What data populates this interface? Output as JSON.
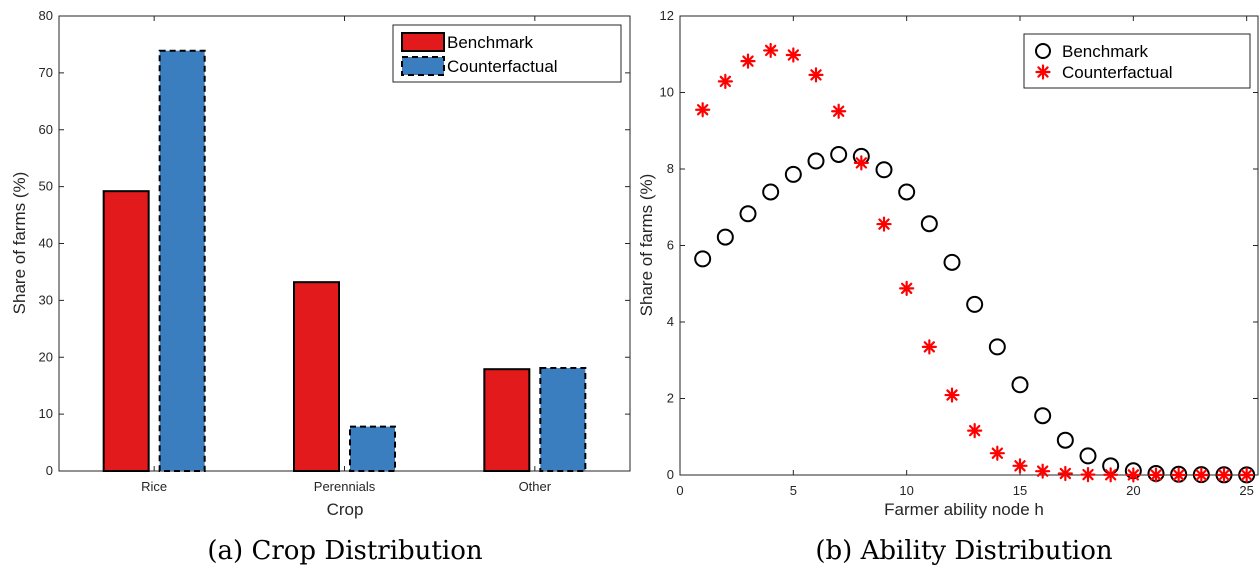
{
  "captions": {
    "left": "(a) Crop Distribution",
    "right": "(b) Ability Distribution"
  },
  "colors": {
    "benchmark": "#e31a1c",
    "counterfactual": "#3a7ec0",
    "marker_benchmark": "#000000",
    "marker_counterfactual": "#ff0000"
  },
  "chart_data": [
    {
      "type": "bar",
      "categories": [
        "Rice",
        "Perennials",
        "Other"
      ],
      "series": [
        {
          "name": "Benchmark",
          "values": [
            49.2,
            33.2,
            17.9
          ]
        },
        {
          "name": "Counterfactual",
          "values": [
            73.9,
            7.8,
            18.1
          ]
        }
      ],
      "xlabel": "Crop",
      "ylabel": "Share of farms (%)",
      "ylim": [
        0,
        80
      ],
      "yticks": [
        0,
        10,
        20,
        30,
        40,
        50,
        60,
        70,
        80
      ],
      "legend": "top-right",
      "grid": false
    },
    {
      "type": "scatter",
      "x": [
        1,
        2,
        3,
        4,
        5,
        6,
        7,
        8,
        9,
        10,
        11,
        12,
        13,
        14,
        15,
        16,
        17,
        18,
        19,
        20,
        21,
        22,
        23,
        24,
        25
      ],
      "series": [
        {
          "name": "Benchmark",
          "marker": "circle",
          "values": [
            5.65,
            6.22,
            6.83,
            7.4,
            7.86,
            8.21,
            8.38,
            8.33,
            7.98,
            7.4,
            6.57,
            5.56,
            4.46,
            3.35,
            2.36,
            1.55,
            0.91,
            0.5,
            0.24,
            0.11,
            0.04,
            0.02,
            0.01,
            0.005,
            0.002
          ]
        },
        {
          "name": "Counterfactual",
          "marker": "asterisk",
          "values": [
            9.55,
            10.29,
            10.82,
            11.1,
            10.98,
            10.46,
            9.51,
            8.16,
            6.56,
            4.88,
            3.35,
            2.09,
            1.16,
            0.57,
            0.24,
            0.1,
            0.04,
            0.01,
            0.005,
            0.002,
            0.001,
            0.0,
            0.0,
            0.0,
            0.0
          ]
        }
      ],
      "xlabel": "Farmer ability node h",
      "ylabel": "Share of farms (%)",
      "xlim": [
        0,
        25.5
      ],
      "ylim": [
        0,
        12
      ],
      "xticks": [
        0,
        5,
        10,
        15,
        20,
        25
      ],
      "yticks": [
        0,
        2,
        4,
        6,
        8,
        10,
        12
      ],
      "legend": "top-right",
      "grid": false
    }
  ]
}
